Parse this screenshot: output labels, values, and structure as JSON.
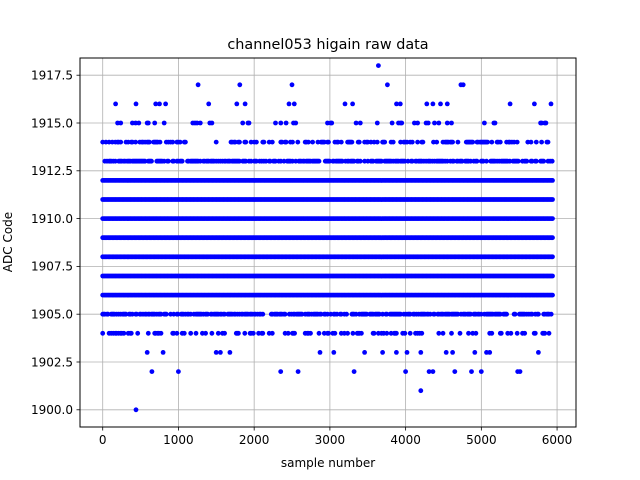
{
  "chart_data": {
    "type": "scatter",
    "title": "channel053 higain raw data",
    "xlabel": "sample number",
    "ylabel": "ADC Code",
    "xlim": [
      -300,
      6250
    ],
    "ylim": [
      1899.1,
      1918.4
    ],
    "xticks": [
      0,
      1000,
      2000,
      3000,
      4000,
      5000,
      6000
    ],
    "yticks": [
      1900.0,
      1902.5,
      1905.0,
      1907.5,
      1910.0,
      1912.5,
      1915.0,
      1917.5
    ],
    "xtick_labels": [
      "0",
      "1000",
      "2000",
      "3000",
      "4000",
      "5000",
      "6000"
    ],
    "ytick_labels": [
      "1900.0",
      "1902.5",
      "1905.0",
      "1907.5",
      "1910.0",
      "1912.5",
      "1915.0",
      "1917.5"
    ],
    "grid": true,
    "marker_color": "#0000ff",
    "x_range": [
      0,
      5940
    ],
    "dense_levels": [
      1906,
      1907,
      1908,
      1909,
      1910,
      1911,
      1912
    ],
    "medium_levels": [
      1905,
      1913
    ],
    "sparse_levels": [
      1904,
      1914,
      1915,
      1903
    ],
    "outliers": [
      {
        "x": 440,
        "y": 1900
      },
      {
        "x": 4200,
        "y": 1901
      },
      {
        "x": 650,
        "y": 1902
      },
      {
        "x": 1000,
        "y": 1902
      },
      {
        "x": 2350,
        "y": 1902
      },
      {
        "x": 2580,
        "y": 1902
      },
      {
        "x": 3320,
        "y": 1902
      },
      {
        "x": 4000,
        "y": 1902
      },
      {
        "x": 4310,
        "y": 1902
      },
      {
        "x": 4360,
        "y": 1902
      },
      {
        "x": 4650,
        "y": 1902
      },
      {
        "x": 4870,
        "y": 1902
      },
      {
        "x": 5000,
        "y": 1902
      },
      {
        "x": 5480,
        "y": 1902
      },
      {
        "x": 5510,
        "y": 1902
      },
      {
        "x": 170,
        "y": 1916
      },
      {
        "x": 440,
        "y": 1916
      },
      {
        "x": 700,
        "y": 1916
      },
      {
        "x": 750,
        "y": 1916
      },
      {
        "x": 830,
        "y": 1916
      },
      {
        "x": 1400,
        "y": 1916
      },
      {
        "x": 1770,
        "y": 1916
      },
      {
        "x": 1880,
        "y": 1916
      },
      {
        "x": 2460,
        "y": 1916
      },
      {
        "x": 2530,
        "y": 1916
      },
      {
        "x": 3200,
        "y": 1916
      },
      {
        "x": 3300,
        "y": 1916
      },
      {
        "x": 3880,
        "y": 1916
      },
      {
        "x": 3930,
        "y": 1916
      },
      {
        "x": 4280,
        "y": 1916
      },
      {
        "x": 4360,
        "y": 1916
      },
      {
        "x": 4460,
        "y": 1916
      },
      {
        "x": 4550,
        "y": 1916
      },
      {
        "x": 5380,
        "y": 1916
      },
      {
        "x": 5700,
        "y": 1916
      },
      {
        "x": 5920,
        "y": 1916
      },
      {
        "x": 1260,
        "y": 1917
      },
      {
        "x": 1810,
        "y": 1917
      },
      {
        "x": 2500,
        "y": 1917
      },
      {
        "x": 3760,
        "y": 1917
      },
      {
        "x": 4730,
        "y": 1917
      },
      {
        "x": 4760,
        "y": 1917
      },
      {
        "x": 3640,
        "y": 1918
      }
    ]
  }
}
